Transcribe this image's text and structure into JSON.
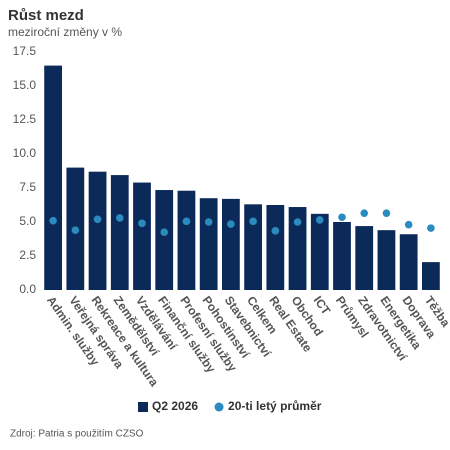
{
  "chart_data": {
    "type": "bar",
    "title": "Růst mezd",
    "subtitle": "meziroční změny v %",
    "source": "Zdroj: Patria s použitím CZSO",
    "categories": [
      "Admin. služby",
      "Veřejná správa",
      "Rekreace a kultura",
      "Zemědělství",
      "Vzdělávání",
      "Finanční služby",
      "Profesní služby",
      "Pohostinství",
      "Stavebnictví",
      "Celkem",
      "Real Estate",
      "Obchod",
      "ICT",
      "Průmysl",
      "Zdravotnictví",
      "Energetika",
      "Doprava",
      "Těžba"
    ],
    "series": [
      {
        "name": "Q2 2026",
        "type": "bar",
        "color": "#0b2a5a",
        "values": [
          16.5,
          9.0,
          8.7,
          8.45,
          7.9,
          7.35,
          7.3,
          6.75,
          6.7,
          6.3,
          6.25,
          6.1,
          5.6,
          5.0,
          4.7,
          4.4,
          4.1,
          2.05
        ]
      },
      {
        "name": "20-ti letý průměr",
        "type": "dot",
        "color": "#2a8bbf",
        "values": [
          5.1,
          4.4,
          5.2,
          5.3,
          4.9,
          4.25,
          5.05,
          5.0,
          4.85,
          5.05,
          4.35,
          5.0,
          5.15,
          5.35,
          5.65,
          5.65,
          4.8,
          4.55
        ]
      }
    ],
    "ylim": [
      0,
      17.5
    ],
    "yticks": [
      {
        "value": 0,
        "label": "0.0"
      },
      {
        "value": 2.5,
        "label": "2.5"
      },
      {
        "value": 5,
        "label": "5.0"
      },
      {
        "value": 7.5,
        "label": "7.5"
      },
      {
        "value": 10,
        "label": "10.0"
      },
      {
        "value": 12.5,
        "label": "12.5"
      },
      {
        "value": 15,
        "label": "15.0"
      },
      {
        "value": 17.5,
        "label": "17.5"
      }
    ],
    "grid": false,
    "legend": "bottom"
  }
}
